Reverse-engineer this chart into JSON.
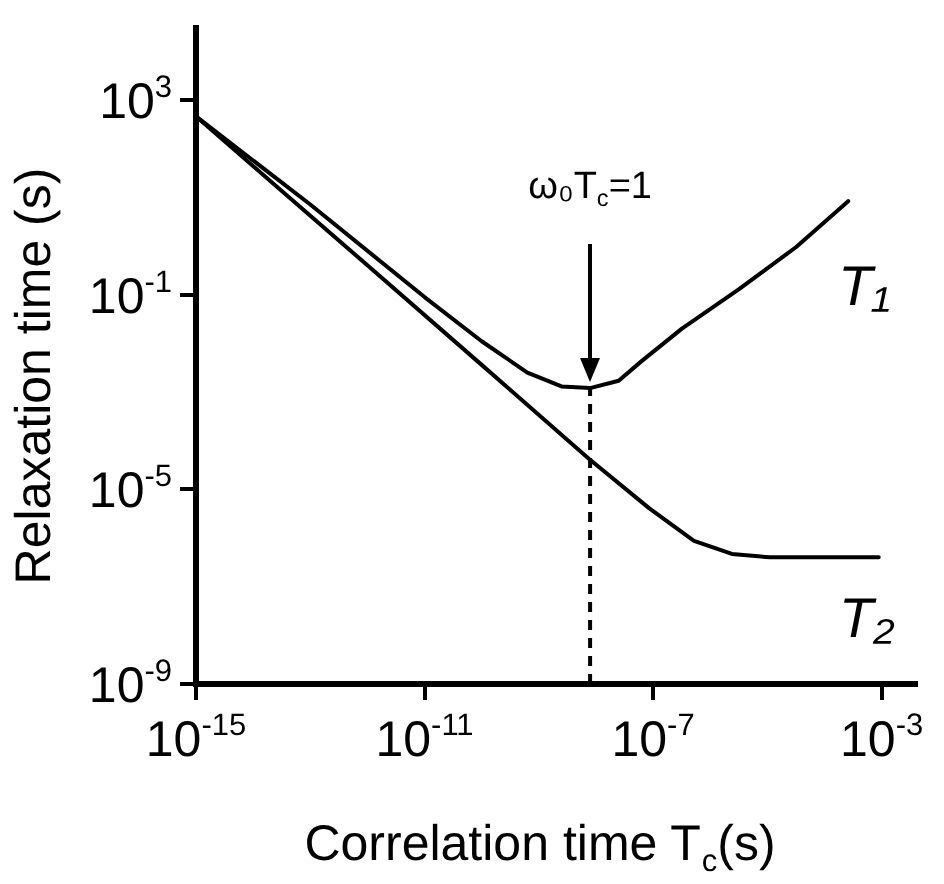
{
  "chart_data": {
    "type": "line",
    "xlabel": "Correlation time T$_{c}$(s)",
    "ylabel": "Relaxation time (s)",
    "log": "xy",
    "xlim": [
      1e-15,
      0.004
    ],
    "ylim": [
      1e-09,
      30000.0
    ],
    "xticks": [
      {
        "value": 1e-15,
        "label": "10$^{-15}$"
      },
      {
        "value": 1e-11,
        "label": "10$^{-11}$"
      },
      {
        "value": 1e-07,
        "label": "10$^{-7}$"
      },
      {
        "value": 0.001,
        "label": "10$^{-3}$"
      }
    ],
    "yticks": [
      {
        "value": 1000.0,
        "label": "10$^{3}$"
      },
      {
        "value": 0.1,
        "label": "10$^{-1}$"
      },
      {
        "value": 1e-05,
        "label": "10$^{-5}$"
      },
      {
        "value": 1e-09,
        "label": "10$^{-9}$"
      }
    ],
    "grid": false,
    "legend": false,
    "marker": "none",
    "line_style": "solid",
    "series": [
      {
        "name": "T₁",
        "color": "#000000",
        "x": [
          1e-15,
          1e-13,
          1e-11,
          1e-10,
          6.3e-10,
          2.5e-09,
          7.9e-09,
          2.5e-08,
          6.3e-08,
          3.2e-07,
          3.2e-06,
          3.2e-05,
          0.00026
        ],
        "values": [
          457,
          7.1,
          0.089,
          0.011,
          0.0025,
          0.0013,
          0.0012,
          0.0017,
          0.0043,
          0.02,
          0.13,
          0.95,
          8.3
        ]
      },
      {
        "name": "T₂",
        "color": "#000000",
        "x": [
          1e-15,
          1e-12,
          1e-10,
          7.6e-09,
          8.5e-08,
          5.2e-07,
          2.4e-06,
          1.1e-05,
          0.00089
        ],
        "values": [
          457,
          0.4,
          0.0036,
          4.2e-05,
          4.1e-06,
          8.7e-07,
          4.7e-07,
          4e-07,
          4e-07
        ]
      }
    ],
    "ref_lines": [
      {
        "axis": "x",
        "value": 7.9e-09,
        "line_style": "dashed",
        "color": "#000000"
      }
    ],
    "annotations": [
      "ω₀T$_{c}$=1"
    ]
  }
}
